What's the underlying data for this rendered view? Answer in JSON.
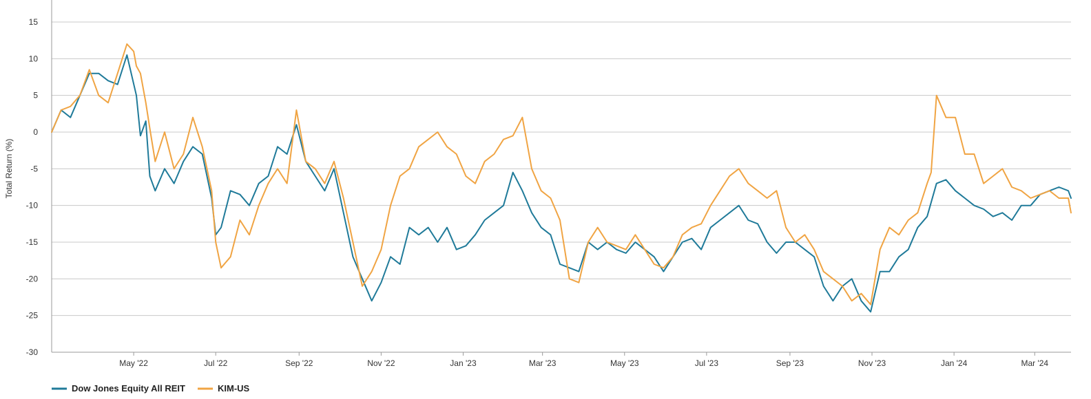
{
  "chart_data": {
    "type": "line",
    "title": "",
    "xlabel": "",
    "ylabel": "Total Return (%)",
    "ylim": [
      -30,
      18
    ],
    "yticks": [
      15,
      10,
      5,
      0,
      -5,
      -10,
      -15,
      -20,
      -25,
      -30
    ],
    "xlim": [
      "2022-03-01",
      "2024-03-28"
    ],
    "xticks": [
      {
        "label": "May '22",
        "date": "2022-05-01"
      },
      {
        "label": "Jul '22",
        "date": "2022-07-01"
      },
      {
        "label": "Sep '22",
        "date": "2022-09-01"
      },
      {
        "label": "Nov '22",
        "date": "2022-11-01"
      },
      {
        "label": "Jan '23",
        "date": "2023-01-01"
      },
      {
        "label": "Mar '23",
        "date": "2023-03-01"
      },
      {
        "label": "May '23",
        "date": "2023-05-01"
      },
      {
        "label": "Jul '23",
        "date": "2023-07-01"
      },
      {
        "label": "Sep '23",
        "date": "2023-09-01"
      },
      {
        "label": "Nov '23",
        "date": "2023-11-01"
      },
      {
        "label": "Jan '24",
        "date": "2024-01-01"
      },
      {
        "label": "Mar '24",
        "date": "2024-03-01"
      }
    ],
    "grid": true,
    "legend_position": "bottom-left",
    "series": [
      {
        "name": "Dow Jones Equity All REIT",
        "color": "#1f7a99",
        "points": [
          [
            "2022-03-01",
            0
          ],
          [
            "2022-03-08",
            3
          ],
          [
            "2022-03-15",
            2
          ],
          [
            "2022-03-22",
            5
          ],
          [
            "2022-03-29",
            8
          ],
          [
            "2022-04-05",
            8
          ],
          [
            "2022-04-12",
            7
          ],
          [
            "2022-04-19",
            6.5
          ],
          [
            "2022-04-26",
            10.5
          ],
          [
            "2022-05-03",
            5
          ],
          [
            "2022-05-06",
            -0.5
          ],
          [
            "2022-05-10",
            1.5
          ],
          [
            "2022-05-13",
            -6
          ],
          [
            "2022-05-17",
            -8
          ],
          [
            "2022-05-24",
            -5
          ],
          [
            "2022-05-31",
            -7
          ],
          [
            "2022-06-07",
            -4
          ],
          [
            "2022-06-14",
            -2
          ],
          [
            "2022-06-21",
            -3
          ],
          [
            "2022-06-28",
            -9
          ],
          [
            "2022-07-01",
            -14
          ],
          [
            "2022-07-05",
            -13
          ],
          [
            "2022-07-12",
            -8
          ],
          [
            "2022-07-19",
            -8.5
          ],
          [
            "2022-07-26",
            -10
          ],
          [
            "2022-08-02",
            -7
          ],
          [
            "2022-08-09",
            -6
          ],
          [
            "2022-08-16",
            -2
          ],
          [
            "2022-08-23",
            -3
          ],
          [
            "2022-08-30",
            1
          ],
          [
            "2022-09-06",
            -4
          ],
          [
            "2022-09-13",
            -6
          ],
          [
            "2022-09-20",
            -8
          ],
          [
            "2022-09-27",
            -5
          ],
          [
            "2022-10-04",
            -11
          ],
          [
            "2022-10-11",
            -17
          ],
          [
            "2022-10-18",
            -20
          ],
          [
            "2022-10-25",
            -23
          ],
          [
            "2022-11-01",
            -20.5
          ],
          [
            "2022-11-08",
            -17
          ],
          [
            "2022-11-15",
            -18
          ],
          [
            "2022-11-22",
            -13
          ],
          [
            "2022-11-29",
            -14
          ],
          [
            "2022-12-06",
            -13
          ],
          [
            "2022-12-13",
            -15
          ],
          [
            "2022-12-20",
            -13
          ],
          [
            "2022-12-27",
            -16
          ],
          [
            "2023-01-03",
            -15.5
          ],
          [
            "2023-01-10",
            -14
          ],
          [
            "2023-01-17",
            -12
          ],
          [
            "2023-01-24",
            -11
          ],
          [
            "2023-01-31",
            -10
          ],
          [
            "2023-02-07",
            -5.5
          ],
          [
            "2023-02-14",
            -8
          ],
          [
            "2023-02-21",
            -11
          ],
          [
            "2023-02-28",
            -13
          ],
          [
            "2023-03-07",
            -14
          ],
          [
            "2023-03-14",
            -18
          ],
          [
            "2023-03-21",
            -18.5
          ],
          [
            "2023-03-28",
            -19
          ],
          [
            "2023-04-04",
            -15
          ],
          [
            "2023-04-11",
            -16
          ],
          [
            "2023-04-18",
            -15
          ],
          [
            "2023-04-25",
            -16
          ],
          [
            "2023-05-02",
            -16.5
          ],
          [
            "2023-05-09",
            -15
          ],
          [
            "2023-05-16",
            -16
          ],
          [
            "2023-05-23",
            -17
          ],
          [
            "2023-05-30",
            -19
          ],
          [
            "2023-06-06",
            -17
          ],
          [
            "2023-06-13",
            -15
          ],
          [
            "2023-06-20",
            -14.5
          ],
          [
            "2023-06-27",
            -16
          ],
          [
            "2023-07-04",
            -13
          ],
          [
            "2023-07-11",
            -12
          ],
          [
            "2023-07-18",
            -11
          ],
          [
            "2023-07-25",
            -10
          ],
          [
            "2023-08-01",
            -12
          ],
          [
            "2023-08-08",
            -12.5
          ],
          [
            "2023-08-15",
            -15
          ],
          [
            "2023-08-22",
            -16.5
          ],
          [
            "2023-08-29",
            -15
          ],
          [
            "2023-09-05",
            -15
          ],
          [
            "2023-09-12",
            -16
          ],
          [
            "2023-09-19",
            -17
          ],
          [
            "2023-09-26",
            -21
          ],
          [
            "2023-10-03",
            -23
          ],
          [
            "2023-10-10",
            -21
          ],
          [
            "2023-10-17",
            -20
          ],
          [
            "2023-10-24",
            -23
          ],
          [
            "2023-10-31",
            -24.5
          ],
          [
            "2023-11-07",
            -19
          ],
          [
            "2023-11-14",
            -19
          ],
          [
            "2023-11-21",
            -17
          ],
          [
            "2023-11-28",
            -16
          ],
          [
            "2023-12-05",
            -13
          ],
          [
            "2023-12-12",
            -11.5
          ],
          [
            "2023-12-19",
            -7
          ],
          [
            "2023-12-26",
            -6.5
          ],
          [
            "2024-01-02",
            -8
          ],
          [
            "2024-01-09",
            -9
          ],
          [
            "2024-01-16",
            -10
          ],
          [
            "2024-01-23",
            -10.5
          ],
          [
            "2024-01-30",
            -11.5
          ],
          [
            "2024-02-06",
            -11
          ],
          [
            "2024-02-13",
            -12
          ],
          [
            "2024-02-20",
            -10
          ],
          [
            "2024-02-27",
            -10
          ],
          [
            "2024-03-05",
            -8.5
          ],
          [
            "2024-03-12",
            -8
          ],
          [
            "2024-03-19",
            -7.5
          ],
          [
            "2024-03-26",
            -8
          ],
          [
            "2024-03-28",
            -9
          ]
        ]
      },
      {
        "name": "KIM-US",
        "color": "#f0a443",
        "points": [
          [
            "2022-03-01",
            0
          ],
          [
            "2022-03-08",
            3
          ],
          [
            "2022-03-15",
            3.5
          ],
          [
            "2022-03-22",
            5
          ],
          [
            "2022-03-29",
            8.5
          ],
          [
            "2022-04-05",
            5
          ],
          [
            "2022-04-12",
            4
          ],
          [
            "2022-04-19",
            8
          ],
          [
            "2022-04-26",
            12
          ],
          [
            "2022-05-01",
            11
          ],
          [
            "2022-05-03",
            9
          ],
          [
            "2022-05-06",
            8
          ],
          [
            "2022-05-10",
            4
          ],
          [
            "2022-05-13",
            0.5
          ],
          [
            "2022-05-17",
            -4
          ],
          [
            "2022-05-24",
            0
          ],
          [
            "2022-05-31",
            -5
          ],
          [
            "2022-06-07",
            -3
          ],
          [
            "2022-06-14",
            2
          ],
          [
            "2022-06-21",
            -2
          ],
          [
            "2022-06-28",
            -8
          ],
          [
            "2022-07-01",
            -15
          ],
          [
            "2022-07-05",
            -18.5
          ],
          [
            "2022-07-12",
            -17
          ],
          [
            "2022-07-19",
            -12
          ],
          [
            "2022-07-26",
            -14
          ],
          [
            "2022-08-02",
            -10
          ],
          [
            "2022-08-09",
            -7
          ],
          [
            "2022-08-16",
            -5
          ],
          [
            "2022-08-23",
            -7
          ],
          [
            "2022-08-30",
            3
          ],
          [
            "2022-09-06",
            -4
          ],
          [
            "2022-09-13",
            -5
          ],
          [
            "2022-09-20",
            -7
          ],
          [
            "2022-09-27",
            -4
          ],
          [
            "2022-10-04",
            -9
          ],
          [
            "2022-10-11",
            -15
          ],
          [
            "2022-10-18",
            -21
          ],
          [
            "2022-10-25",
            -19
          ],
          [
            "2022-11-01",
            -16
          ],
          [
            "2022-11-08",
            -10
          ],
          [
            "2022-11-15",
            -6
          ],
          [
            "2022-11-22",
            -5
          ],
          [
            "2022-11-29",
            -2
          ],
          [
            "2022-12-06",
            -1
          ],
          [
            "2022-12-13",
            0
          ],
          [
            "2022-12-20",
            -2
          ],
          [
            "2022-12-27",
            -3
          ],
          [
            "2023-01-03",
            -6
          ],
          [
            "2023-01-10",
            -7
          ],
          [
            "2023-01-17",
            -4
          ],
          [
            "2023-01-24",
            -3
          ],
          [
            "2023-01-31",
            -1
          ],
          [
            "2023-02-07",
            -0.5
          ],
          [
            "2023-02-14",
            2
          ],
          [
            "2023-02-21",
            -5
          ],
          [
            "2023-02-28",
            -8
          ],
          [
            "2023-03-07",
            -9
          ],
          [
            "2023-03-14",
            -12
          ],
          [
            "2023-03-21",
            -20
          ],
          [
            "2023-03-28",
            -20.5
          ],
          [
            "2023-04-04",
            -15
          ],
          [
            "2023-04-11",
            -13
          ],
          [
            "2023-04-18",
            -15
          ],
          [
            "2023-04-25",
            -15.5
          ],
          [
            "2023-05-02",
            -16
          ],
          [
            "2023-05-09",
            -14
          ],
          [
            "2023-05-16",
            -16
          ],
          [
            "2023-05-23",
            -18
          ],
          [
            "2023-05-30",
            -18.5
          ],
          [
            "2023-06-06",
            -17
          ],
          [
            "2023-06-13",
            -14
          ],
          [
            "2023-06-20",
            -13
          ],
          [
            "2023-06-27",
            -12.5
          ],
          [
            "2023-07-04",
            -10
          ],
          [
            "2023-07-11",
            -8
          ],
          [
            "2023-07-18",
            -6
          ],
          [
            "2023-07-25",
            -5
          ],
          [
            "2023-08-01",
            -7
          ],
          [
            "2023-08-08",
            -8
          ],
          [
            "2023-08-15",
            -9
          ],
          [
            "2023-08-22",
            -8
          ],
          [
            "2023-08-29",
            -13
          ],
          [
            "2023-09-05",
            -15
          ],
          [
            "2023-09-12",
            -14
          ],
          [
            "2023-09-19",
            -16
          ],
          [
            "2023-09-26",
            -19
          ],
          [
            "2023-10-03",
            -20
          ],
          [
            "2023-10-10",
            -21
          ],
          [
            "2023-10-17",
            -23
          ],
          [
            "2023-10-24",
            -22
          ],
          [
            "2023-10-31",
            -23.5
          ],
          [
            "2023-11-07",
            -16
          ],
          [
            "2023-11-14",
            -13
          ],
          [
            "2023-11-21",
            -14
          ],
          [
            "2023-11-28",
            -12
          ],
          [
            "2023-12-05",
            -11
          ],
          [
            "2023-12-12",
            -7
          ],
          [
            "2023-12-15",
            -5.5
          ],
          [
            "2023-12-19",
            5
          ],
          [
            "2023-12-26",
            2
          ],
          [
            "2024-01-02",
            2
          ],
          [
            "2024-01-09",
            -3
          ],
          [
            "2024-01-16",
            -3
          ],
          [
            "2024-01-23",
            -7
          ],
          [
            "2024-01-30",
            -6
          ],
          [
            "2024-02-06",
            -5
          ],
          [
            "2024-02-13",
            -7.5
          ],
          [
            "2024-02-20",
            -8
          ],
          [
            "2024-02-27",
            -9
          ],
          [
            "2024-03-05",
            -8.5
          ],
          [
            "2024-03-12",
            -8
          ],
          [
            "2024-03-19",
            -9
          ],
          [
            "2024-03-26",
            -9
          ],
          [
            "2024-03-28",
            -11
          ]
        ]
      }
    ]
  }
}
